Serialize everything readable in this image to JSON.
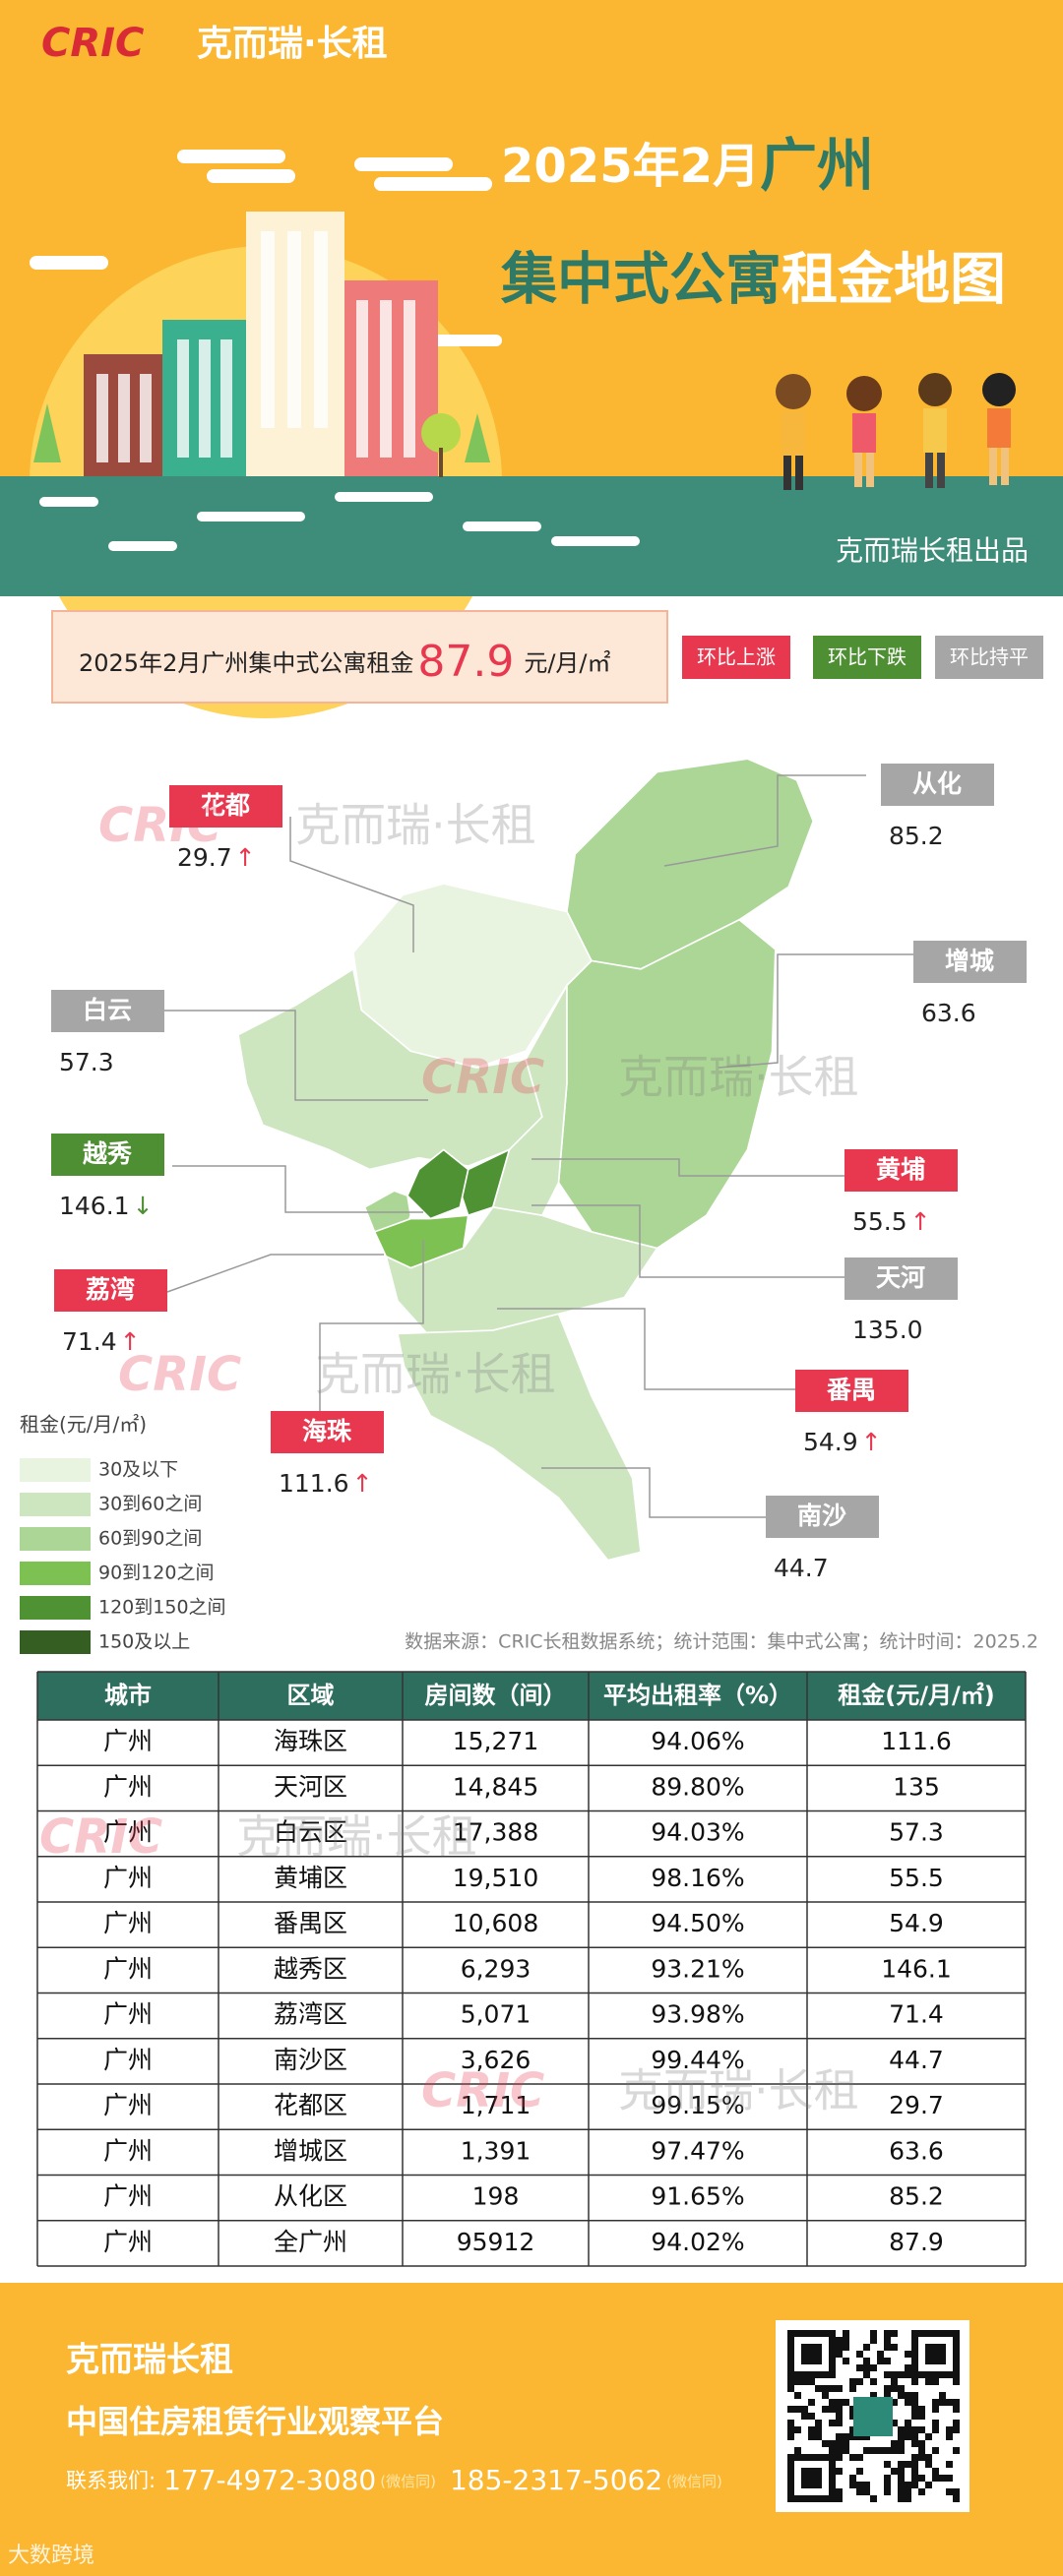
{
  "header": {
    "logo": "CRIC",
    "brand": "克而瑞·长租",
    "title_date": "2025年2月",
    "title_city": "广州",
    "title_subject": "集中式公寓",
    "title_rest": "租金地图",
    "publisher": "克而瑞长租出品"
  },
  "summary": {
    "prefix": "2025年2月广州集中式公寓租金",
    "value": "87.9",
    "unit": "元/月/㎡"
  },
  "trend_legend": [
    {
      "label": "环比上涨",
      "color": "#e8384f"
    },
    {
      "label": "环比下跌",
      "color": "#4f8f34"
    },
    {
      "label": "环比持平",
      "color": "#a6a6a6"
    }
  ],
  "districts": [
    {
      "name": "花都",
      "value": "29.7",
      "trend": "↑",
      "color": "#e8384f"
    },
    {
      "name": "从化",
      "value": "85.2",
      "color": "#a6a6a6"
    },
    {
      "name": "增城",
      "value": "63.6",
      "color": "#a6a6a6"
    },
    {
      "name": "白云",
      "value": "57.3",
      "color": "#a6a6a6"
    },
    {
      "name": "越秀",
      "value": "146.1",
      "trend": "↓",
      "color": "#4f8f34"
    },
    {
      "name": "黄埔",
      "value": "55.5",
      "trend": "↑",
      "color": "#e8384f"
    },
    {
      "name": "荔湾",
      "value": "71.4",
      "trend": "↑",
      "color": "#e8384f"
    },
    {
      "name": "天河",
      "value": "135.0",
      "color": "#a6a6a6"
    },
    {
      "name": "番禺",
      "value": "54.9",
      "trend": "↑",
      "color": "#e8384f"
    },
    {
      "name": "海珠",
      "value": "111.6",
      "trend": "↑",
      "color": "#e8384f"
    },
    {
      "name": "南沙",
      "value": "44.7",
      "color": "#a6a6a6"
    }
  ],
  "map_legend": {
    "title": "租金(元/月/㎡)",
    "items": [
      {
        "label": "30及以下",
        "color": "#e8f3e0"
      },
      {
        "label": "30到60之间",
        "color": "#cde6c0"
      },
      {
        "label": "60到90之间",
        "color": "#acd695"
      },
      {
        "label": "90到120之间",
        "color": "#7dc152"
      },
      {
        "label": "120到150之间",
        "color": "#4f9234"
      },
      {
        "label": "150及以上",
        "color": "#355e22"
      }
    ]
  },
  "source": "数据来源：CRIC长租数据系统；统计范围：集中式公寓；统计时间：2025.2",
  "table": {
    "header": [
      "城市",
      "区域",
      "房间数（间）",
      "平均出租率（%）",
      "租金(元/月/㎡)"
    ],
    "rows": [
      [
        "广州",
        "海珠区",
        "15,271",
        "94.06%",
        "111.6"
      ],
      [
        "广州",
        "天河区",
        "14,845",
        "89.80%",
        "135"
      ],
      [
        "广州",
        "白云区",
        "17,388",
        "94.03%",
        "57.3"
      ],
      [
        "广州",
        "黄埔区",
        "19,510",
        "98.16%",
        "55.5"
      ],
      [
        "广州",
        "番禺区",
        "10,608",
        "94.50%",
        "54.9"
      ],
      [
        "广州",
        "越秀区",
        "6,293",
        "93.21%",
        "146.1"
      ],
      [
        "广州",
        "荔湾区",
        "5,071",
        "93.98%",
        "71.4"
      ],
      [
        "广州",
        "南沙区",
        "3,626",
        "99.44%",
        "44.7"
      ],
      [
        "广州",
        "花都区",
        "1,711",
        "99.15%",
        "29.7"
      ],
      [
        "广州",
        "增城区",
        "1,391",
        "97.47%",
        "63.6"
      ],
      [
        "广州",
        "从化区",
        "198",
        "91.65%",
        "85.2"
      ],
      [
        "广州",
        "全广州",
        "95912",
        "94.02%",
        "87.9"
      ]
    ]
  },
  "footer": {
    "name": "克而瑞长租",
    "slogan": "中国住房租赁行业观察平台",
    "contact_label": "联系我们:",
    "phone1": "177-4972-3080",
    "note1": "(微信同)",
    "phone2": "185-2317-5062",
    "note2": "(微信同)"
  },
  "corner_mark": "大数跨境"
}
